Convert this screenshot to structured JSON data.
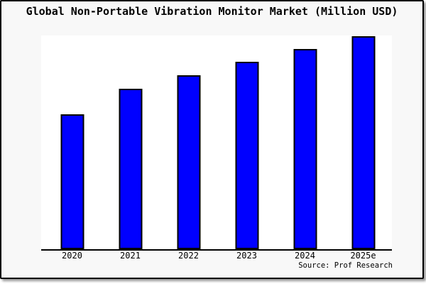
{
  "title": "Global Non-Portable Vibration Monitor Market (Million USD)",
  "source": "Source: Prof Research",
  "colors": {
    "bar_fill": "#0000ff",
    "bar_border": "#000000",
    "frame_background": "#f8f8f8",
    "plot_background": "#ffffff",
    "axis": "#000000",
    "text": "#000000"
  },
  "chart_data": {
    "type": "bar",
    "title": "Global Non-Portable Vibration Monitor Market (Million USD)",
    "categories": [
      "2020",
      "2021",
      "2022",
      "2023",
      "2024",
      "2025e"
    ],
    "values": [
      63.3,
      75.3,
      81.7,
      88.0,
      94.0,
      100.0
    ],
    "value_note": "no y-axis labels shown; values are relative estimates normalized to 2025e = 100",
    "ylim": [
      0,
      100.33
    ],
    "xlabel": "",
    "ylabel": "",
    "grid": false,
    "legend": false,
    "bar_color": "#0000ff",
    "annotations": [
      "Source: Prof Research"
    ]
  }
}
